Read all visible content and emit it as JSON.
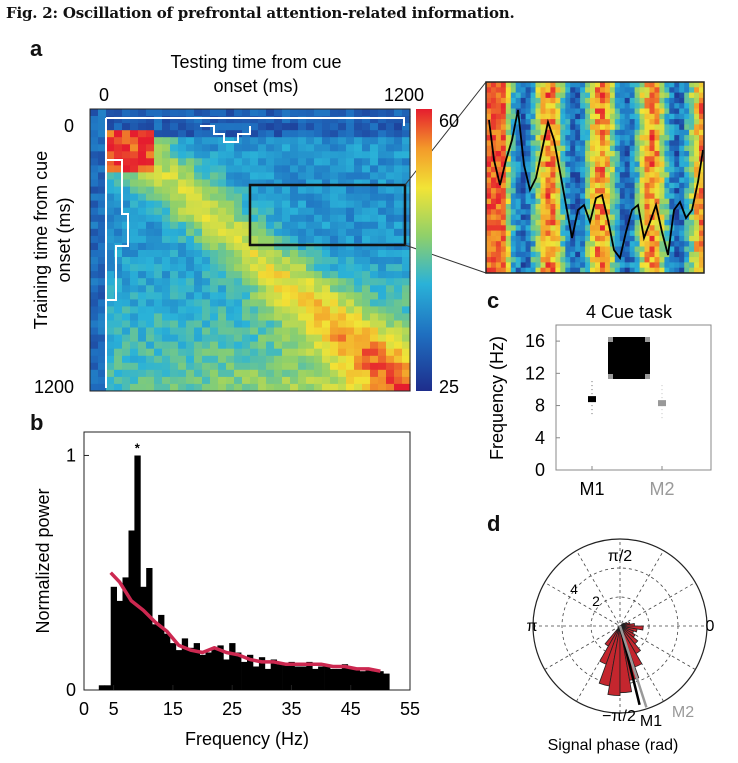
{
  "figure_title": "Fig. 2: Oscillation of prefrontal attention-related information.",
  "panel_a": {
    "letter": "a",
    "x_label_line1": "Testing time from cue",
    "x_label_line2": "onset (ms)",
    "y_label_line1": "Training time from cue",
    "y_label_line2": "onset (ms)",
    "x_tick_start": "0",
    "x_tick_end": "1200",
    "y_tick_start": "0",
    "y_tick_end": "1200",
    "colorbar_max": "60",
    "colorbar_min": "25",
    "colors": {
      "low": "#1f3f9a",
      "mid": "#2aa6d6",
      "green": "#8fd06a",
      "yellow": "#f2e436",
      "high": "#e8232b"
    }
  },
  "panel_b": {
    "letter": "b",
    "star_label": "*",
    "line_color": "#cc2850"
  },
  "panel_c": {
    "letter": "c",
    "title": "4 Cue task"
  },
  "panel_d": {
    "letter": "d",
    "angle_top": "π/2",
    "angle_left": "π",
    "angle_right": "0",
    "angle_bottom": "−π/2",
    "radial_tick_2": "2",
    "radial_tick_4": "4",
    "label_m1": "M1",
    "label_m2": "M2",
    "xlabel": "Signal phase (rad)",
    "wedge_color": "#c4262e"
  },
  "chart_data": [
    {
      "panel": "b",
      "type": "bar",
      "title": "",
      "xlabel": "Frequency (Hz)",
      "ylabel": "Normalized power",
      "xlim": [
        0,
        55
      ],
      "ylim": [
        0,
        1.1
      ],
      "x_ticks": [
        "0",
        "5",
        "15",
        "25",
        "35",
        "45",
        "55"
      ],
      "y_ticks": [
        "0",
        "1"
      ],
      "x": [
        3,
        4,
        5,
        6,
        7,
        8,
        9,
        10,
        11,
        12,
        13,
        14,
        15,
        16,
        17,
        18,
        19,
        20,
        21,
        22,
        23,
        24,
        25,
        26,
        27,
        28,
        29,
        30,
        31,
        32,
        33,
        34,
        35,
        36,
        37,
        38,
        39,
        40,
        41,
        42,
        43,
        44,
        45,
        46,
        47,
        48,
        49,
        50,
        51
      ],
      "series": [
        {
          "name": "Power",
          "values": [
            0.02,
            0.02,
            0.44,
            0.38,
            0.48,
            0.68,
            1.0,
            0.44,
            0.52,
            0.28,
            0.32,
            0.24,
            0.2,
            0.17,
            0.22,
            0.18,
            0.2,
            0.15,
            0.16,
            0.18,
            0.19,
            0.13,
            0.2,
            0.16,
            0.12,
            0.15,
            0.1,
            0.14,
            0.09,
            0.13,
            0.11,
            0.11,
            0.12,
            0.1,
            0.1,
            0.12,
            0.09,
            0.1,
            0.1,
            0.09,
            0.09,
            0.11,
            0.09,
            0.09,
            0.08,
            0.09,
            0.08,
            0.08,
            0.07
          ]
        },
        {
          "name": "Fit",
          "x": [
            4.5,
            6,
            8,
            10,
            12,
            14,
            16,
            18,
            20,
            22,
            24,
            26,
            28,
            30,
            32,
            34,
            36,
            38,
            40,
            42,
            44,
            46,
            48,
            50
          ],
          "values": [
            0.5,
            0.46,
            0.38,
            0.34,
            0.29,
            0.25,
            0.19,
            0.17,
            0.16,
            0.18,
            0.16,
            0.15,
            0.13,
            0.12,
            0.12,
            0.11,
            0.11,
            0.11,
            0.11,
            0.1,
            0.1,
            0.09,
            0.09,
            0.08
          ]
        }
      ],
      "annotations": [
        {
          "text": "*",
          "x": 9,
          "y": 1.03
        }
      ]
    },
    {
      "panel": "c",
      "type": "scatter",
      "title": "4 Cue task",
      "xlabel": "",
      "ylabel": "Frequency (Hz)",
      "categories": [
        "M1",
        "M2"
      ],
      "ylim": [
        0,
        18
      ],
      "y_ticks": [
        "0",
        "4",
        "8",
        "12",
        "16"
      ],
      "series": [
        {
          "name": "M1",
          "values": [
            8.8
          ]
        },
        {
          "name": "M2",
          "values": [
            8.3
          ]
        }
      ]
    },
    {
      "panel": "d",
      "type": "polar-histogram",
      "title": "",
      "xlabel": "Signal phase (rad)",
      "rlim": [
        0,
        6
      ],
      "r_ticks": [
        "2",
        "4"
      ],
      "bin_angles_deg": [
        -125,
        -115,
        -105,
        -95,
        -85,
        -75,
        -65,
        -55,
        -45,
        -35,
        -25,
        -15,
        -5,
        5,
        15,
        25,
        35
      ],
      "counts": [
        1.6,
        2.8,
        4.2,
        4.8,
        4.6,
        3.8,
        3.0,
        2.2,
        1.6,
        1.2,
        1.0,
        1.2,
        1.6,
        1.0,
        0.7,
        0.5,
        0.3
      ],
      "mean_vectors": [
        {
          "name": "M1",
          "angle_deg": -76,
          "length": 5.6
        },
        {
          "name": "M2",
          "angle_deg": -72,
          "length": 5.9
        }
      ]
    }
  ]
}
